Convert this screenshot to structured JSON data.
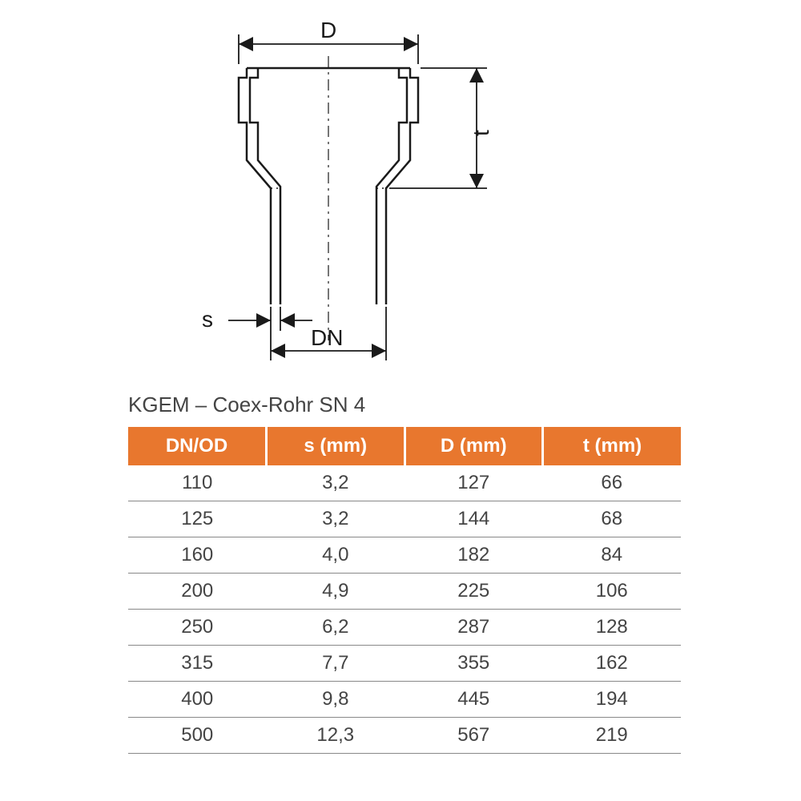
{
  "diagram": {
    "labels": {
      "D": "D",
      "t": "t",
      "s": "s",
      "DN": "DN"
    },
    "colors": {
      "stroke": "#1a1a1a",
      "stroke_width": 2.5,
      "arrow_size": 12
    }
  },
  "table": {
    "title": "KGEM – Coex-Rohr SN 4",
    "header_bg": "#e8772e",
    "header_fg": "#ffffff",
    "cell_fg": "#444444",
    "border_color": "#888888",
    "columns": [
      "DN/OD",
      "s (mm)",
      "D (mm)",
      "t (mm)"
    ],
    "column_widths": [
      "25%",
      "25%",
      "25%",
      "25%"
    ],
    "rows": [
      [
        "110",
        "3,2",
        "127",
        "66"
      ],
      [
        "125",
        "3,2",
        "144",
        "68"
      ],
      [
        "160",
        "4,0",
        "182",
        "84"
      ],
      [
        "200",
        "4,9",
        "225",
        "106"
      ],
      [
        "250",
        "6,2",
        "287",
        "128"
      ],
      [
        "315",
        "7,7",
        "355",
        "162"
      ],
      [
        "400",
        "9,8",
        "445",
        "194"
      ],
      [
        "500",
        "12,3",
        "567",
        "219"
      ]
    ]
  }
}
